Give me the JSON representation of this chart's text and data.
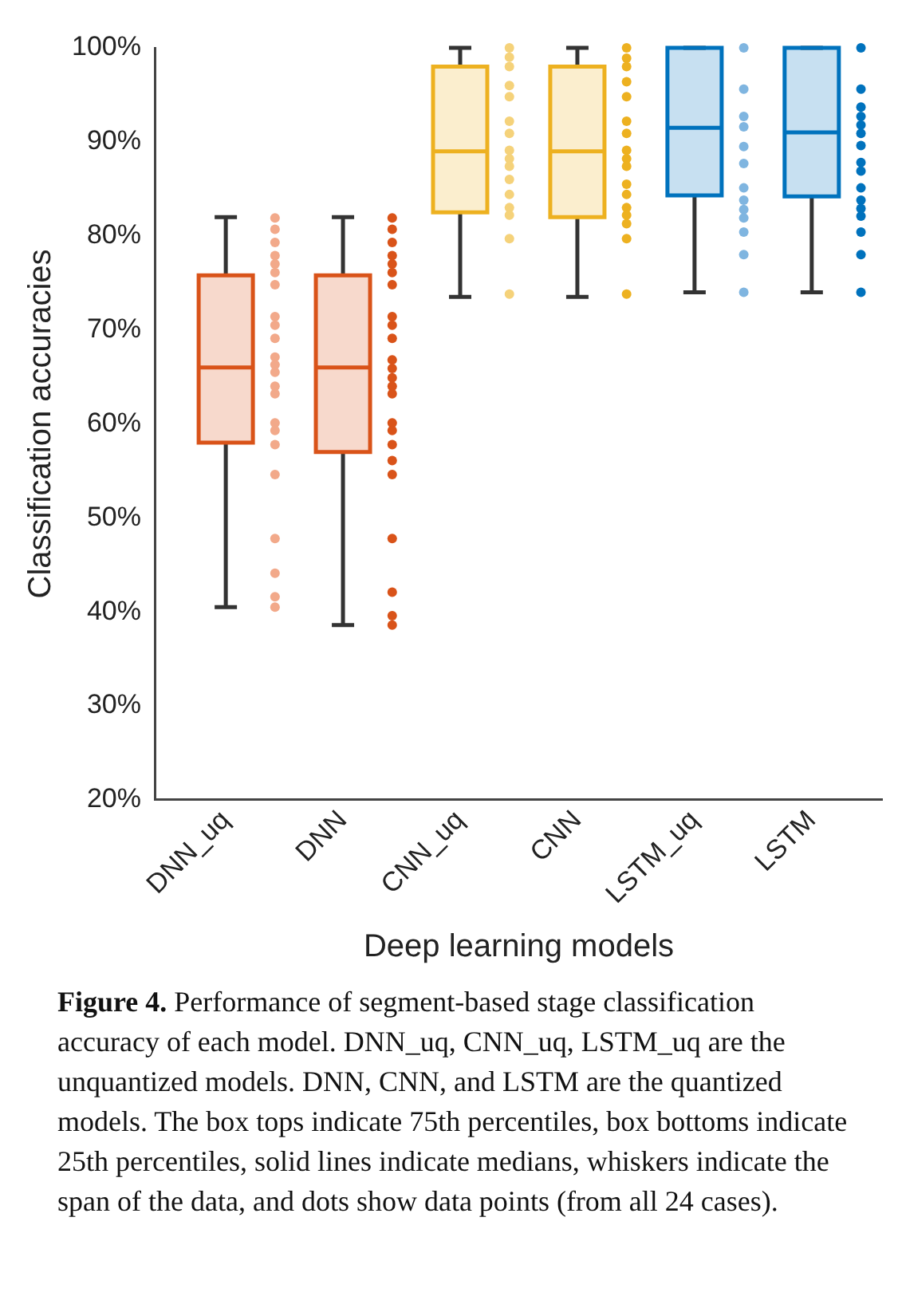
{
  "chart_data": {
    "type": "box",
    "xlabel": "Deep learning models",
    "ylabel": "Classification accuracies",
    "categories": [
      "DNN_uq",
      "DNN",
      "CNN_uq",
      "CNN",
      "LSTM_uq",
      "LSTM"
    ],
    "series": [
      {
        "type": "box",
        "colors": [
          "#d95319",
          "#d95319",
          "#edb120",
          "#edb120",
          "#0072bd",
          "#0072bd"
        ],
        "boxes": [
          {
            "low": 40.5,
            "q1": 58,
            "median": 66,
            "q3": 75.8,
            "high": 82
          },
          {
            "low": 38.6,
            "q1": 57,
            "median": 66,
            "q3": 75.8,
            "high": 82
          },
          {
            "low": 73.5,
            "q1": 82.5,
            "median": 89,
            "q3": 98,
            "high": 100
          },
          {
            "low": 73.5,
            "q1": 82,
            "median": 89,
            "q3": 98,
            "high": 100
          },
          {
            "low": 74,
            "q1": 84.3,
            "median": 91.5,
            "q3": 100,
            "high": 100
          },
          {
            "low": 74,
            "q1": 84.2,
            "median": 91,
            "q3": 100,
            "high": 100
          }
        ]
      },
      {
        "type": "scatter",
        "color": "#f2a98a",
        "x": [
          "DNN_uq",
          "DNN_uq",
          "DNN_uq",
          "DNN_uq",
          "DNN_uq",
          "DNN_uq",
          "DNN_uq",
          "DNN_uq",
          "DNN_uq",
          "DNN_uq",
          "DNN_uq",
          "DNN_uq",
          "DNN_uq",
          "DNN_uq",
          "DNN_uq",
          "DNN_uq",
          "DNN_uq",
          "DNN_uq",
          "DNN_uq",
          "DNN_uq",
          "DNN_uq",
          "DNN_uq",
          "DNN_uq"
        ],
        "values": [
          81.9,
          80.7,
          79.3,
          77.9,
          77.0,
          76.1,
          74.8,
          71.4,
          70.5,
          69.1,
          67.1,
          66.3,
          65.5,
          64.0,
          63.2,
          60.1,
          59.3,
          57.8,
          54.6,
          47.8,
          44.1,
          41.6,
          40.5
        ]
      },
      {
        "type": "scatter",
        "color": "#d95319",
        "x": [
          "DNN",
          "DNN",
          "DNN",
          "DNN",
          "DNN",
          "DNN",
          "DNN",
          "DNN",
          "DNN",
          "DNN",
          "DNN",
          "DNN",
          "DNN",
          "DNN",
          "DNN",
          "DNN",
          "DNN",
          "DNN",
          "DNN",
          "DNN",
          "DNN",
          "DNN",
          "DNN",
          "DNN"
        ],
        "values": [
          81.9,
          80.7,
          79.3,
          77.9,
          77.0,
          76.1,
          74.8,
          71.4,
          70.5,
          69.1,
          66.8,
          65.9,
          64.9,
          64.0,
          63.2,
          60.1,
          59.3,
          57.8,
          56.1,
          54.6,
          47.8,
          42.1,
          39.6,
          38.6
        ]
      },
      {
        "type": "scatter",
        "color": "#f5d27a",
        "x": [
          "CNN_uq",
          "CNN_uq",
          "CNN_uq",
          "CNN_uq",
          "CNN_uq",
          "CNN_uq",
          "CNN_uq",
          "CNN_uq",
          "CNN_uq",
          "CNN_uq",
          "CNN_uq",
          "CNN_uq",
          "CNN_uq",
          "CNN_uq",
          "CNN_uq",
          "CNN_uq"
        ],
        "values": [
          100,
          99.0,
          98.0,
          96.0,
          94.8,
          92.2,
          90.9,
          89.1,
          88.2,
          87.4,
          86.0,
          84.4,
          83.0,
          82.2,
          79.7,
          73.8
        ]
      },
      {
        "type": "scatter",
        "color": "#edb120",
        "x": [
          "CNN",
          "CNN",
          "CNN",
          "CNN",
          "CNN",
          "CNN",
          "CNN",
          "CNN",
          "CNN",
          "CNN",
          "CNN",
          "CNN",
          "CNN",
          "CNN",
          "CNN",
          "CNN",
          "CNN"
        ],
        "values": [
          100,
          98.9,
          98.0,
          96.4,
          94.8,
          92.2,
          90.9,
          89.1,
          88.2,
          87.4,
          85.5,
          84.4,
          83.0,
          82.2,
          81.3,
          79.7,
          73.8
        ]
      },
      {
        "type": "scatter",
        "color": "#7fb5e0",
        "x": [
          "LSTM_uq",
          "LSTM_uq",
          "LSTM_uq",
          "LSTM_uq",
          "LSTM_uq",
          "LSTM_uq",
          "LSTM_uq",
          "LSTM_uq",
          "LSTM_uq",
          "LSTM_uq",
          "LSTM_uq",
          "LSTM_uq",
          "LSTM_uq"
        ],
        "values": [
          100,
          95.6,
          92.7,
          91.6,
          89.5,
          87.7,
          85.1,
          83.8,
          82.8,
          81.9,
          80.4,
          78.0,
          74.0
        ]
      },
      {
        "type": "scatter",
        "color": "#0072bd",
        "x": [
          "LSTM",
          "LSTM",
          "LSTM",
          "LSTM",
          "LSTM",
          "LSTM",
          "LSTM",
          "LSTM",
          "LSTM",
          "LSTM",
          "LSTM",
          "LSTM",
          "LSTM",
          "LSTM",
          "LSTM",
          "LSTM"
        ],
        "values": [
          100,
          95.6,
          93.7,
          92.7,
          91.8,
          90.9,
          89.6,
          87.8,
          86.9,
          85.1,
          83.8,
          82.9,
          82.1,
          80.4,
          78.0,
          74.0
        ]
      }
    ],
    "ylim": [
      20,
      100
    ],
    "yticks": [
      {
        "value": 20,
        "label": "20%"
      },
      {
        "value": 30,
        "label": "30%"
      },
      {
        "value": 40,
        "label": "40%"
      },
      {
        "value": 50,
        "label": "50%"
      },
      {
        "value": 60,
        "label": "60%"
      },
      {
        "value": 70,
        "label": "70%"
      },
      {
        "value": 80,
        "label": "80%"
      },
      {
        "value": 90,
        "label": "90%"
      },
      {
        "value": 100,
        "label": "100%"
      }
    ],
    "marker": "circle",
    "annotations": [
      "Figure 4. Performance of segment-based stage classification accuracy of each model. DNN_uq, CNN_uq, LSTM_uq are the unquantized models. DNN, CNN, and LSTM are the quantized models. The box tops indicate 75th percentiles, box bottoms indicate 25th percentiles, solid lines indicate medians, whiskers indicate the span of the data, and dots show data points (from all 24 cases)."
    ]
  }
}
